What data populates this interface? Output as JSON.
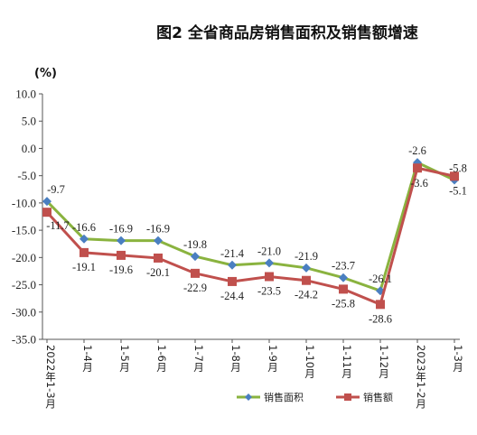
{
  "chart_data": {
    "type": "line",
    "title": "图2 全省商品房销售面积及销售额增速",
    "ylabel": "(%)",
    "xlabel": "",
    "ylim": [
      -35,
      10
    ],
    "yticks": [
      "10.0",
      "5.0",
      "0.0",
      "-5.0",
      "-10.0",
      "-15.0",
      "-20.0",
      "-25.0",
      "-30.0",
      "-35.0"
    ],
    "categories": [
      "2022年1-3月",
      "1-4月",
      "1-5月",
      "1-6月",
      "1-7月",
      "1-8月",
      "1-9月",
      "1-10月",
      "1-11月",
      "1-12月",
      "2023年1-2月",
      "1-3月"
    ],
    "grid": false,
    "legend": "bottom-right",
    "series": [
      {
        "name": "销售面积",
        "color": "#8ab33f",
        "marker": "diamond",
        "marker_color": "#4a7fc1",
        "values": [
          -9.7,
          -16.6,
          -16.9,
          -16.9,
          -19.8,
          -21.4,
          -21.0,
          -21.9,
          -23.7,
          -26.1,
          -2.6,
          -5.8
        ],
        "labels": [
          "-9.7",
          "-16.6",
          "-16.9",
          "-16.9",
          "-19.8",
          "-21.4",
          "-21.0",
          "-21.9",
          "-23.7",
          "-26.1",
          "-2.6",
          "-5.8"
        ]
      },
      {
        "name": "销售额",
        "color": "#c0504d",
        "marker": "square",
        "marker_color": "#c0504d",
        "values": [
          -11.7,
          -19.1,
          -19.6,
          -20.1,
          -22.9,
          -24.4,
          -23.5,
          -24.2,
          -25.8,
          -28.6,
          -3.6,
          -5.1
        ],
        "labels": [
          "-11.7",
          "-19.1",
          "-19.6",
          "-20.1",
          "-22.9",
          "-24.4",
          "-23.5",
          "-24.2",
          "-25.8",
          "-28.6",
          "-3.6",
          "-5.1"
        ]
      }
    ]
  }
}
